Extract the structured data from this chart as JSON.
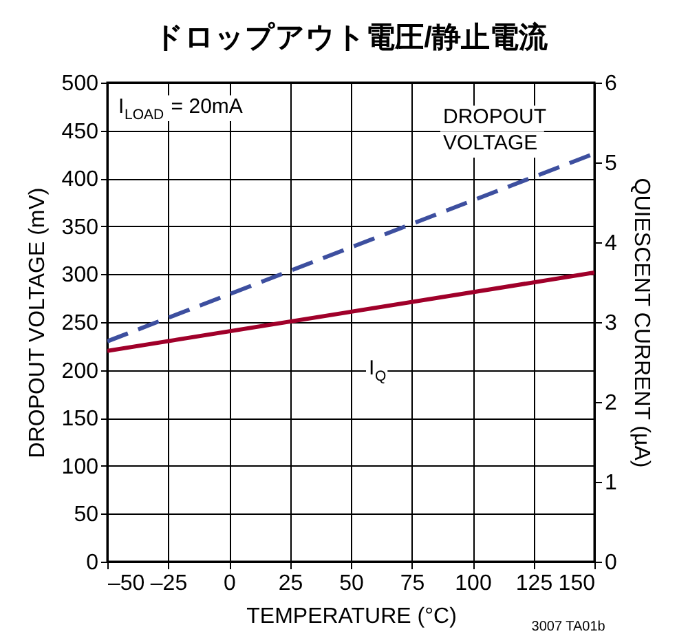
{
  "chart_data": {
    "type": "line",
    "title": "ドロップアウト電圧/静止電流",
    "xlabel": "TEMPERATURE (°C)",
    "ylabel": "DROPOUT VOLTAGE (mV)",
    "y2label": "QUIESCENT CURRENT (µA)",
    "xlim": [
      -50,
      150
    ],
    "xticks": [
      {
        "value": -50,
        "label": "–50"
      },
      {
        "value": -25,
        "label": "–25"
      },
      0,
      25,
      50,
      75,
      100,
      125,
      150
    ],
    "ylim": [
      0,
      500
    ],
    "yticks": [
      0,
      50,
      100,
      150,
      200,
      250,
      300,
      350,
      400,
      450,
      500
    ],
    "y2lim": [
      0,
      6
    ],
    "y2ticks": [
      0,
      1,
      2,
      3,
      4,
      5,
      6
    ],
    "x": [
      -50,
      150
    ],
    "series": [
      {
        "name": "DROPOUT VOLTAGE",
        "color": "#3d4f9f",
        "values": [
          230,
          426
        ],
        "line_style": "dashed"
      },
      {
        "name": "I$_{Q}$",
        "color": "#a0002a",
        "values": [
          2.64,
          3.62
        ],
        "axis": "y2",
        "line_style": "solid"
      }
    ],
    "annotations": [
      "I$_{LOAD}$ = 20mA",
      "3007 TA01b"
    ],
    "grid": true,
    "legend": false,
    "marker": "none"
  }
}
